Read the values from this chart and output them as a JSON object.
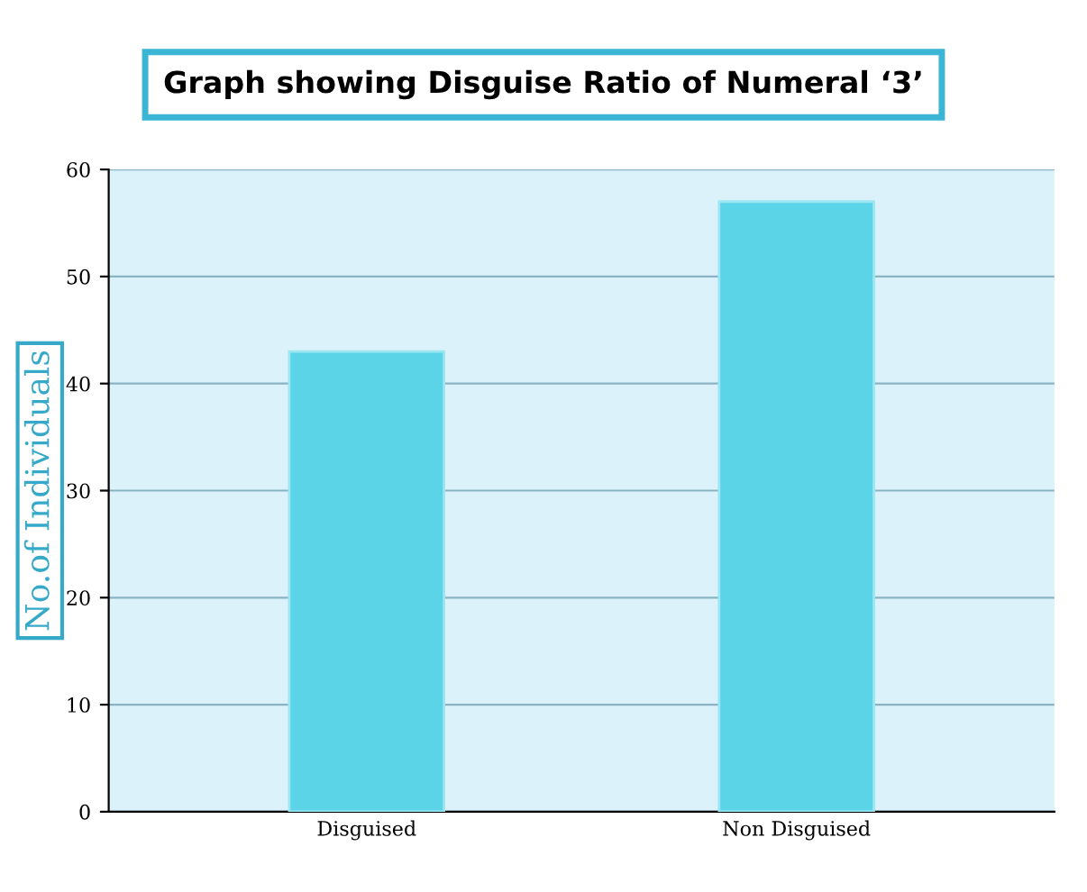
{
  "chart_data": {
    "type": "bar",
    "title": "Graph showing Disguise Ratio of Numeral ‘3’",
    "ylabel": "No.of Individuals",
    "categories": [
      "Disguised",
      "Non Disguised"
    ],
    "values": [
      43,
      57
    ],
    "color": "#5cd4e8",
    "ylim": [
      0,
      60
    ],
    "yticks": [
      0,
      10,
      20,
      30,
      40,
      50,
      60
    ],
    "grid": "y"
  }
}
